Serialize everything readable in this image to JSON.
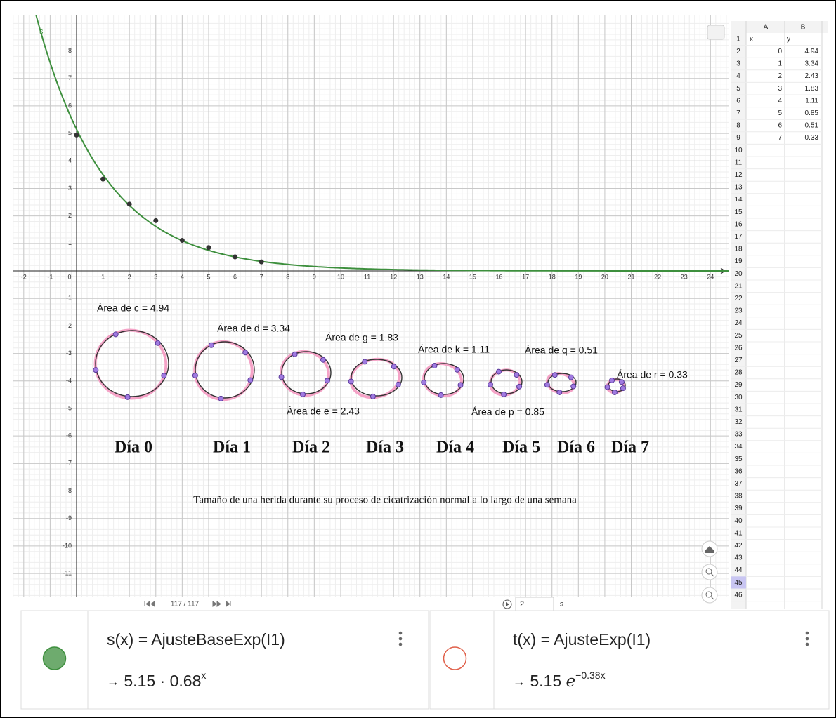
{
  "chart_data": {
    "type": "scatter",
    "x": [
      0,
      1,
      2,
      3,
      4,
      5,
      6,
      7
    ],
    "values": [
      4.94,
      3.34,
      2.43,
      1.83,
      1.11,
      0.85,
      0.51,
      0.33
    ],
    "point_color": "#333333",
    "xlim": [
      -2.42,
      24.71
    ],
    "ylim": [
      -11.84,
      9.29
    ],
    "xticks": [
      -2,
      -1,
      0,
      1,
      2,
      3,
      4,
      5,
      6,
      7,
      8,
      9,
      10,
      11,
      12,
      13,
      14,
      15,
      16,
      17,
      18,
      19,
      20,
      21,
      22,
      23,
      24
    ],
    "yticks": [
      -11,
      -10,
      -9,
      -8,
      -7,
      -6,
      -5,
      -4,
      -3,
      -2,
      -1,
      1,
      2,
      3,
      4,
      5,
      6,
      7,
      8
    ],
    "grid": true,
    "curve_label": "s",
    "annotations": [
      "Área de c = 4.94",
      "Área de d = 3.34",
      "Área de g = 1.83",
      "Área de e = 2.43",
      "Área de k = 1.11",
      "Área de q = 0.51",
      "Área de p = 0.85",
      "Área de r = 0.33"
    ],
    "day_labels": [
      "Día 0",
      "Día 1",
      "Día 2",
      "Día 3",
      "Día 4",
      "Día 5",
      "Día 6",
      "Día 7"
    ],
    "caption": "Tamaño de una herida durante su proceso de cicatrización normal a lo largo de una semana"
  },
  "spreadsheet": {
    "columns": [
      "A",
      "B"
    ],
    "header": [
      "x",
      "y"
    ],
    "row_numbers": [
      1,
      2,
      3,
      4,
      5,
      6,
      7,
      8,
      9,
      10,
      11,
      12,
      13,
      14,
      15,
      16,
      17,
      18,
      19,
      20,
      21,
      22,
      23,
      24,
      25,
      26,
      27,
      28,
      29,
      30,
      31,
      32,
      33,
      34,
      35,
      36,
      37,
      38,
      39,
      40,
      41,
      42,
      43,
      44,
      45,
      46
    ]
  },
  "animation": {
    "frame": "117 / 117",
    "speed": "2",
    "unit": "s"
  },
  "algebra": [
    {
      "color": "#3d8f3d",
      "filled": true,
      "definition": "s(x) = AjusteBaseExp(I1)",
      "result": {
        "arrow": "→",
        "coefficient": 5.15,
        "operator": "·",
        "base": 0.68,
        "exponent": "x"
      }
    },
    {
      "color": "#e0604a",
      "filled": false,
      "definition": "t(x) = AjusteExp(I1)",
      "result": {
        "arrow": "→",
        "coefficient": 5.15,
        "constant": "e",
        "exponent": "−0.38x"
      }
    }
  ]
}
